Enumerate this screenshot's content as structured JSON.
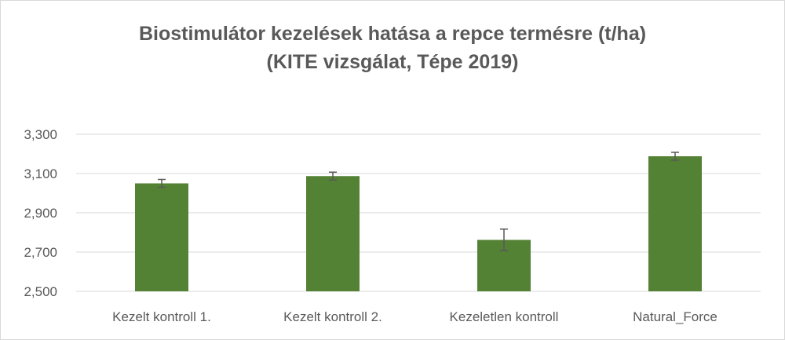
{
  "chart_data": {
    "type": "bar",
    "title_lines": [
      "Biostimulátor kezelések hatása a repce termésre (t/ha)",
      "(KITE vizsgálat, Tépe 2019)"
    ],
    "categories": [
      "Kezelt kontroll 1.",
      "Kezelt kontroll 2.",
      "Kezeletlen kontroll",
      "Natural_Force"
    ],
    "values": [
      3.05,
      3.087,
      2.762,
      3.188
    ],
    "errors": [
      0.02,
      0.02,
      0.055,
      0.02
    ],
    "ylim": [
      2.5,
      3.3
    ],
    "yticks": [
      2.5,
      2.7,
      2.9,
      3.1,
      3.3
    ],
    "ytick_labels": [
      "2,500",
      "2,700",
      "2,900",
      "3,100",
      "3,300"
    ],
    "xlabel": "",
    "ylabel": "",
    "grid": true,
    "bar_color": "#548235",
    "gridline_color": "#d9d9d9",
    "error_bar_color": "#595959"
  }
}
